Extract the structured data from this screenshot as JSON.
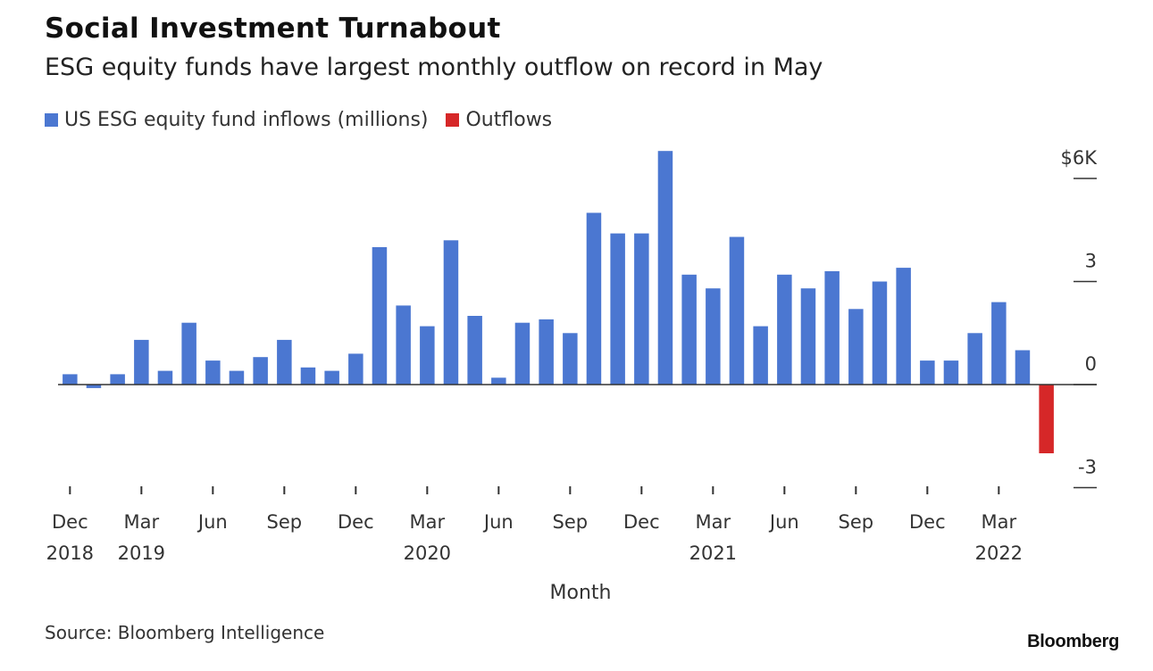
{
  "title": "Social Investment Turnabout",
  "subtitle": "ESG equity funds have largest monthly outflow on record in May",
  "source": "Source: Bloomberg Intelligence",
  "brand": "Bloomberg",
  "colors": {
    "inflow": "#4b77d1",
    "outflow": "#d62728",
    "axis": "#333333"
  },
  "chart_data": {
    "type": "bar",
    "xlabel": "Month",
    "ylabel": "",
    "ylim": [
      -3,
      6
    ],
    "yticks": [
      {
        "value": 6,
        "label": "$6K"
      },
      {
        "value": 3,
        "label": "3"
      },
      {
        "value": 0,
        "label": "0"
      },
      {
        "value": -3,
        "label": "-3"
      }
    ],
    "legend": {
      "placement": "top-left",
      "entries": [
        {
          "name": "US ESG equity fund inflows (millions)",
          "color": "#4b77d1"
        },
        {
          "name": "Outflows",
          "color": "#d62728"
        }
      ]
    },
    "categories": [
      "Dec 2018",
      "Jan 2019",
      "Feb 2019",
      "Mar 2019",
      "Apr 2019",
      "May 2019",
      "Jun 2019",
      "Jul 2019",
      "Aug 2019",
      "Sep 2019",
      "Oct 2019",
      "Nov 2019",
      "Dec 2019",
      "Jan 2020",
      "Feb 2020",
      "Mar 2020",
      "Apr 2020",
      "May 2020",
      "Jun 2020",
      "Jul 2020",
      "Aug 2020",
      "Sep 2020",
      "Oct 2020",
      "Nov 2020",
      "Dec 2020",
      "Jan 2021",
      "Feb 2021",
      "Mar 2021",
      "Apr 2021",
      "May 2021",
      "Jun 2021",
      "Jul 2021",
      "Aug 2021",
      "Sep 2021",
      "Oct 2021",
      "Nov 2021",
      "Dec 2021",
      "Jan 2022",
      "Feb 2022",
      "Mar 2022",
      "Apr 2022",
      "May 2022"
    ],
    "values": [
      0.3,
      -0.1,
      0.3,
      1.3,
      0.4,
      1.8,
      0.7,
      0.4,
      0.8,
      1.3,
      0.5,
      0.4,
      0.9,
      4.0,
      2.3,
      1.7,
      4.2,
      2.0,
      0.2,
      1.8,
      1.9,
      1.5,
      5.0,
      4.4,
      4.4,
      6.8,
      3.2,
      2.8,
      4.3,
      1.7,
      3.2,
      2.8,
      3.3,
      2.2,
      3.0,
      3.4,
      0.7,
      0.7,
      1.5,
      2.4,
      1.0,
      -2.0
    ],
    "x_ticks": [
      {
        "index": 0,
        "month": "Dec",
        "year": "2018"
      },
      {
        "index": 3,
        "month": "Mar",
        "year": "2019"
      },
      {
        "index": 6,
        "month": "Jun",
        "year": ""
      },
      {
        "index": 9,
        "month": "Sep",
        "year": ""
      },
      {
        "index": 12,
        "month": "Dec",
        "year": ""
      },
      {
        "index": 15,
        "month": "Mar",
        "year": "2020"
      },
      {
        "index": 18,
        "month": "Jun",
        "year": ""
      },
      {
        "index": 21,
        "month": "Sep",
        "year": ""
      },
      {
        "index": 24,
        "month": "Dec",
        "year": ""
      },
      {
        "index": 27,
        "month": "Mar",
        "year": "2021"
      },
      {
        "index": 30,
        "month": "Jun",
        "year": ""
      },
      {
        "index": 33,
        "month": "Sep",
        "year": ""
      },
      {
        "index": 36,
        "month": "Dec",
        "year": ""
      },
      {
        "index": 39,
        "month": "Mar",
        "year": "2022"
      }
    ]
  }
}
